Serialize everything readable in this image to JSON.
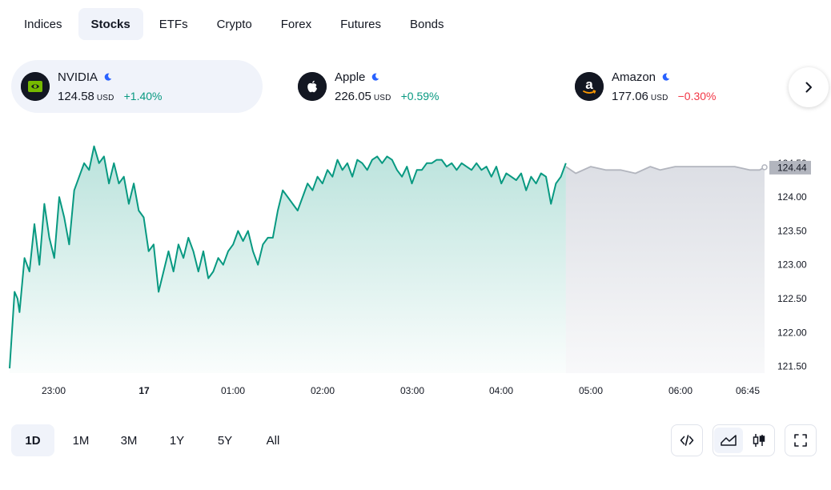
{
  "tabs": [
    "Indices",
    "Stocks",
    "ETFs",
    "Crypto",
    "Forex",
    "Futures",
    "Bonds"
  ],
  "active_tab": "Stocks",
  "tickers": [
    {
      "name": "NVIDIA",
      "price": "124.58",
      "currency": "USD",
      "change": "+1.40%",
      "direction": "up",
      "logo": "nvidia-logo"
    },
    {
      "name": "Apple",
      "price": "226.05",
      "currency": "USD",
      "change": "+0.59%",
      "direction": "up",
      "logo": "apple-logo"
    },
    {
      "name": "Amazon",
      "price": "177.06",
      "currency": "USD",
      "change": "−0.30%",
      "direction": "down",
      "logo": "amazon-logo"
    }
  ],
  "ranges": [
    "1D",
    "1M",
    "3M",
    "1Y",
    "5Y",
    "All"
  ],
  "active_range": "1D",
  "colors": {
    "up": "#089981",
    "down": "#f23645",
    "accent_bg": "#f0f3fa",
    "extended": "#b2b5be"
  },
  "chart_data": {
    "type": "area",
    "x_ticks": [
      "23:00",
      "17",
      "01:00",
      "02:00",
      "03:00",
      "04:00",
      "05:00",
      "06:00",
      "06:45"
    ],
    "y_ticks": [
      "124.50",
      "124.00",
      "123.50",
      "123.00",
      "122.50",
      "122.00",
      "121.50"
    ],
    "ylim": [
      121.4,
      124.9
    ],
    "last_price": "124.44",
    "session_series": [
      [
        22.45,
        121.47
      ],
      [
        22.5,
        122.6
      ],
      [
        22.53,
        122.5
      ],
      [
        22.55,
        122.3
      ],
      [
        22.6,
        123.1
      ],
      [
        22.65,
        122.9
      ],
      [
        22.7,
        123.6
      ],
      [
        22.75,
        123.0
      ],
      [
        22.8,
        123.9
      ],
      [
        22.85,
        123.4
      ],
      [
        22.9,
        123.1
      ],
      [
        22.95,
        124.0
      ],
      [
        23.0,
        123.7
      ],
      [
        23.05,
        123.3
      ],
      [
        23.1,
        124.1
      ],
      [
        23.15,
        124.3
      ],
      [
        23.2,
        124.5
      ],
      [
        23.25,
        124.4
      ],
      [
        23.3,
        124.75
      ],
      [
        23.35,
        124.5
      ],
      [
        23.4,
        124.6
      ],
      [
        23.45,
        124.2
      ],
      [
        23.5,
        124.5
      ],
      [
        23.55,
        124.2
      ],
      [
        23.6,
        124.3
      ],
      [
        23.65,
        123.9
      ],
      [
        23.7,
        124.2
      ],
      [
        23.75,
        123.8
      ],
      [
        23.8,
        123.7
      ],
      [
        23.85,
        123.2
      ],
      [
        23.9,
        123.3
      ],
      [
        23.95,
        122.6
      ],
      [
        24.0,
        122.9
      ],
      [
        24.05,
        123.2
      ],
      [
        24.1,
        122.9
      ],
      [
        24.15,
        123.3
      ],
      [
        24.2,
        123.1
      ],
      [
        24.25,
        123.4
      ],
      [
        24.3,
        123.2
      ],
      [
        24.35,
        122.9
      ],
      [
        24.4,
        123.2
      ],
      [
        24.45,
        122.8
      ],
      [
        24.5,
        122.9
      ],
      [
        24.55,
        123.1
      ],
      [
        24.6,
        123.0
      ],
      [
        24.65,
        123.2
      ],
      [
        24.7,
        123.3
      ],
      [
        24.75,
        123.5
      ],
      [
        24.8,
        123.35
      ],
      [
        24.85,
        123.5
      ],
      [
        24.9,
        123.2
      ],
      [
        24.95,
        123.0
      ],
      [
        25.0,
        123.3
      ],
      [
        25.05,
        123.4
      ],
      [
        25.1,
        123.4
      ],
      [
        25.15,
        123.8
      ],
      [
        25.2,
        124.1
      ],
      [
        25.25,
        124.0
      ],
      [
        25.3,
        123.9
      ],
      [
        25.35,
        123.8
      ],
      [
        25.4,
        124.0
      ],
      [
        25.45,
        124.2
      ],
      [
        25.5,
        124.1
      ],
      [
        25.55,
        124.3
      ],
      [
        25.6,
        124.2
      ],
      [
        25.65,
        124.4
      ],
      [
        25.7,
        124.3
      ],
      [
        25.75,
        124.55
      ],
      [
        25.8,
        124.4
      ],
      [
        25.85,
        124.5
      ],
      [
        25.9,
        124.3
      ],
      [
        25.95,
        124.55
      ],
      [
        26.0,
        124.5
      ],
      [
        26.05,
        124.4
      ],
      [
        26.1,
        124.55
      ],
      [
        26.15,
        124.6
      ],
      [
        26.2,
        124.5
      ],
      [
        26.25,
        124.6
      ],
      [
        26.3,
        124.55
      ],
      [
        26.35,
        124.4
      ],
      [
        26.4,
        124.3
      ],
      [
        26.45,
        124.45
      ],
      [
        26.5,
        124.2
      ],
      [
        26.55,
        124.4
      ],
      [
        26.6,
        124.4
      ],
      [
        26.65,
        124.5
      ],
      [
        26.7,
        124.5
      ],
      [
        26.75,
        124.55
      ],
      [
        26.8,
        124.55
      ],
      [
        26.85,
        124.45
      ],
      [
        26.9,
        124.5
      ],
      [
        26.95,
        124.4
      ],
      [
        27.0,
        124.5
      ],
      [
        27.05,
        124.45
      ],
      [
        27.1,
        124.4
      ],
      [
        27.15,
        124.5
      ],
      [
        27.2,
        124.4
      ],
      [
        27.25,
        124.45
      ],
      [
        27.3,
        124.3
      ],
      [
        27.35,
        124.45
      ],
      [
        27.4,
        124.2
      ],
      [
        27.45,
        124.35
      ],
      [
        27.5,
        124.3
      ],
      [
        27.55,
        124.25
      ],
      [
        27.6,
        124.35
      ],
      [
        27.65,
        124.1
      ],
      [
        27.7,
        124.3
      ],
      [
        27.75,
        124.2
      ],
      [
        27.8,
        124.35
      ],
      [
        27.85,
        124.3
      ],
      [
        27.9,
        123.9
      ],
      [
        27.95,
        124.2
      ],
      [
        28.0,
        124.3
      ],
      [
        28.05,
        124.5
      ]
    ],
    "extended_series": [
      [
        28.05,
        124.45
      ],
      [
        28.15,
        124.35
      ],
      [
        28.3,
        124.45
      ],
      [
        28.45,
        124.4
      ],
      [
        28.6,
        124.4
      ],
      [
        28.75,
        124.35
      ],
      [
        28.9,
        124.45
      ],
      [
        29.0,
        124.4
      ],
      [
        29.15,
        124.45
      ],
      [
        29.3,
        124.45
      ],
      [
        29.45,
        124.45
      ],
      [
        29.6,
        124.45
      ],
      [
        29.75,
        124.45
      ],
      [
        29.9,
        124.4
      ],
      [
        30.0,
        124.4
      ],
      [
        30.05,
        124.44
      ]
    ]
  }
}
